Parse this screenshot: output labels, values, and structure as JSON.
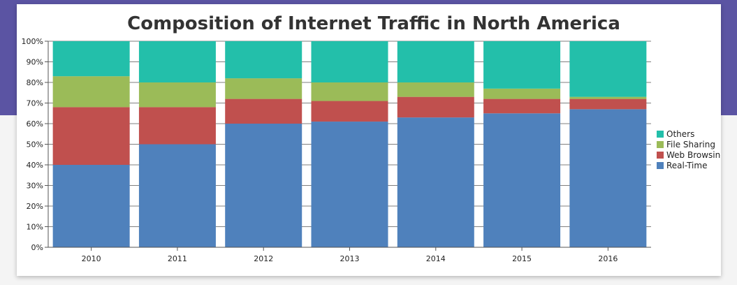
{
  "chart_data": {
    "type": "bar",
    "stacked": "100%",
    "title": "Composition of Internet Traffic in North America",
    "categories": [
      "2010",
      "2011",
      "2012",
      "2013",
      "2014",
      "2015",
      "2016"
    ],
    "series": [
      {
        "name": "Real-Time",
        "color": "#4f81bc",
        "values": [
          40,
          50,
          60,
          61,
          63,
          65,
          67
        ]
      },
      {
        "name": "Web Browsing",
        "color": "#c0504e",
        "values": [
          28,
          18,
          12,
          10,
          10,
          7,
          5
        ]
      },
      {
        "name": "File Sharing",
        "color": "#9bbb58",
        "values": [
          15,
          12,
          10,
          9,
          7,
          5,
          1
        ]
      },
      {
        "name": "Others",
        "color": "#23bfaa",
        "values": [
          17,
          20,
          18,
          20,
          20,
          23,
          27
        ]
      }
    ],
    "ylim": [
      0,
      100
    ],
    "yticks": [
      "0%",
      "10%",
      "20%",
      "30%",
      "40%",
      "50%",
      "60%",
      "70%",
      "80%",
      "90%",
      "100%"
    ],
    "grid": true,
    "legend": "right"
  }
}
